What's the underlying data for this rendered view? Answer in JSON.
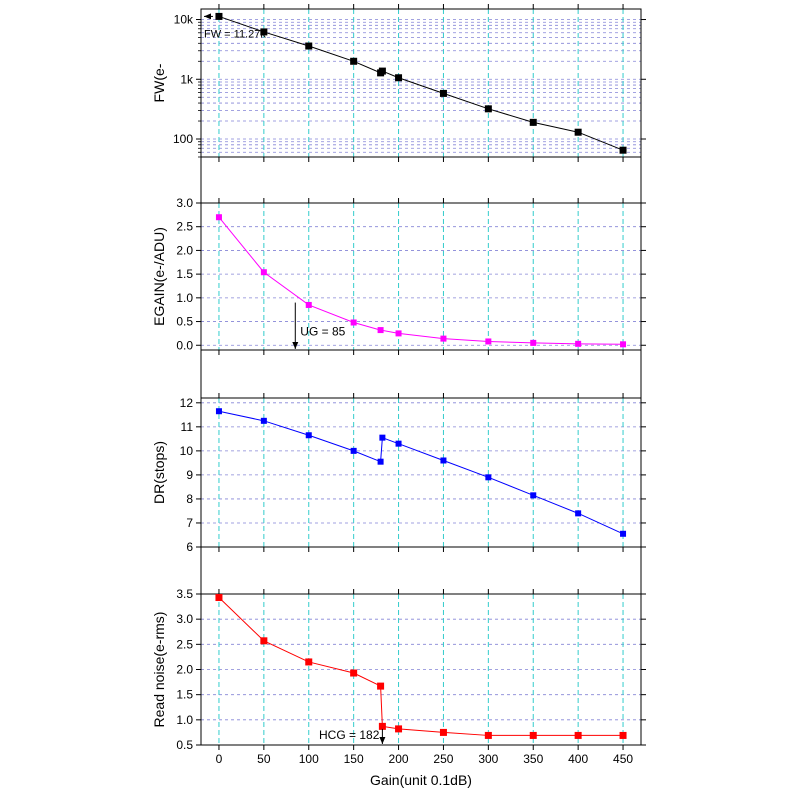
{
  "chart_data": [
    {
      "type": "line",
      "ylabel": "FW(e-",
      "yscale": "log",
      "ylim": [
        50,
        15000
      ],
      "yticks": [
        {
          "v": 10000,
          "label": "10k"
        },
        {
          "v": 1000,
          "label": "1k"
        },
        {
          "v": 100,
          "label": "100"
        }
      ],
      "color": "#000000",
      "marker_size": 7,
      "x": [
        0,
        50,
        100,
        150,
        180,
        182,
        200,
        250,
        300,
        350,
        400,
        450
      ],
      "y": [
        11270,
        6200,
        3600,
        2000,
        1280,
        1370,
        1060,
        580,
        320,
        190,
        130,
        65
      ],
      "annotations": [
        {
          "text": "FW = 11.27k",
          "x": 0,
          "y": 11270
        }
      ]
    },
    {
      "type": "line",
      "ylabel": "EGAIN(e-/ADU)",
      "ylim": [
        -0.1,
        3.0
      ],
      "yticks": [
        {
          "v": 0.0,
          "label": "0.0"
        },
        {
          "v": 0.5,
          "label": "0.5"
        },
        {
          "v": 1.0,
          "label": "1.0"
        },
        {
          "v": 1.5,
          "label": "1.5"
        },
        {
          "v": 2.0,
          "label": "2.0"
        },
        {
          "v": 2.5,
          "label": "2.5"
        },
        {
          "v": 3.0,
          "label": "3.0"
        }
      ],
      "color": "#ff00ff",
      "marker_size": 6,
      "x": [
        0,
        50,
        100,
        150,
        180,
        200,
        250,
        300,
        350,
        400,
        450
      ],
      "y": [
        2.7,
        1.54,
        0.85,
        0.48,
        0.32,
        0.25,
        0.14,
        0.08,
        0.05,
        0.03,
        0.02
      ],
      "annotations": [
        {
          "text": "UG = 85",
          "x": 85,
          "y": 0.0
        }
      ]
    },
    {
      "type": "line",
      "ylabel": "DR(stops)",
      "ylim": [
        6,
        12.2
      ],
      "yticks": [
        {
          "v": 6,
          "label": "6"
        },
        {
          "v": 7,
          "label": "7"
        },
        {
          "v": 8,
          "label": "8"
        },
        {
          "v": 9,
          "label": "9"
        },
        {
          "v": 10,
          "label": "10"
        },
        {
          "v": 11,
          "label": "11"
        },
        {
          "v": 12,
          "label": "12"
        }
      ],
      "color": "#0000ff",
      "marker_size": 6,
      "x": [
        0,
        50,
        100,
        150,
        180,
        182,
        200,
        250,
        300,
        350,
        400,
        450
      ],
      "y": [
        11.65,
        11.25,
        10.65,
        10.0,
        9.55,
        10.55,
        10.3,
        9.6,
        8.9,
        8.15,
        7.4,
        6.55
      ]
    },
    {
      "type": "line",
      "ylabel": "Read noise(e-rms)",
      "xlabel": "Gain(unit 0.1dB)",
      "ylim": [
        0.5,
        3.5
      ],
      "yticks": [
        {
          "v": 0.5,
          "label": "0.5"
        },
        {
          "v": 1.0,
          "label": "1.0"
        },
        {
          "v": 1.5,
          "label": "1.5"
        },
        {
          "v": 2.0,
          "label": "2.0"
        },
        {
          "v": 2.5,
          "label": "2.5"
        },
        {
          "v": 3.0,
          "label": "3.0"
        },
        {
          "v": 3.5,
          "label": "3.5"
        }
      ],
      "color": "#ff0000",
      "marker_size": 7,
      "x": [
        0,
        50,
        100,
        150,
        180,
        182,
        200,
        250,
        300,
        350,
        400,
        450
      ],
      "y": [
        3.43,
        2.57,
        2.15,
        1.93,
        1.67,
        0.87,
        0.82,
        0.75,
        0.69,
        0.69,
        0.69,
        0.69
      ],
      "annotations": [
        {
          "text": "HCG = 182",
          "x": 182,
          "y": 0.5
        }
      ]
    }
  ],
  "x_axis": {
    "xlim": [
      -20,
      470
    ],
    "xticks": [
      0,
      50,
      100,
      150,
      200,
      250,
      300,
      350,
      400,
      450
    ],
    "xtick_labels": [
      "0",
      "50",
      "100",
      "150",
      "200",
      "250",
      "300",
      "350",
      "400",
      "450"
    ],
    "xlabel": "Gain(unit 0.1dB)",
    "grid": true
  },
  "colors": {
    "grid_vertical": "#33cccc",
    "grid_horizontal": "#6666cc"
  }
}
